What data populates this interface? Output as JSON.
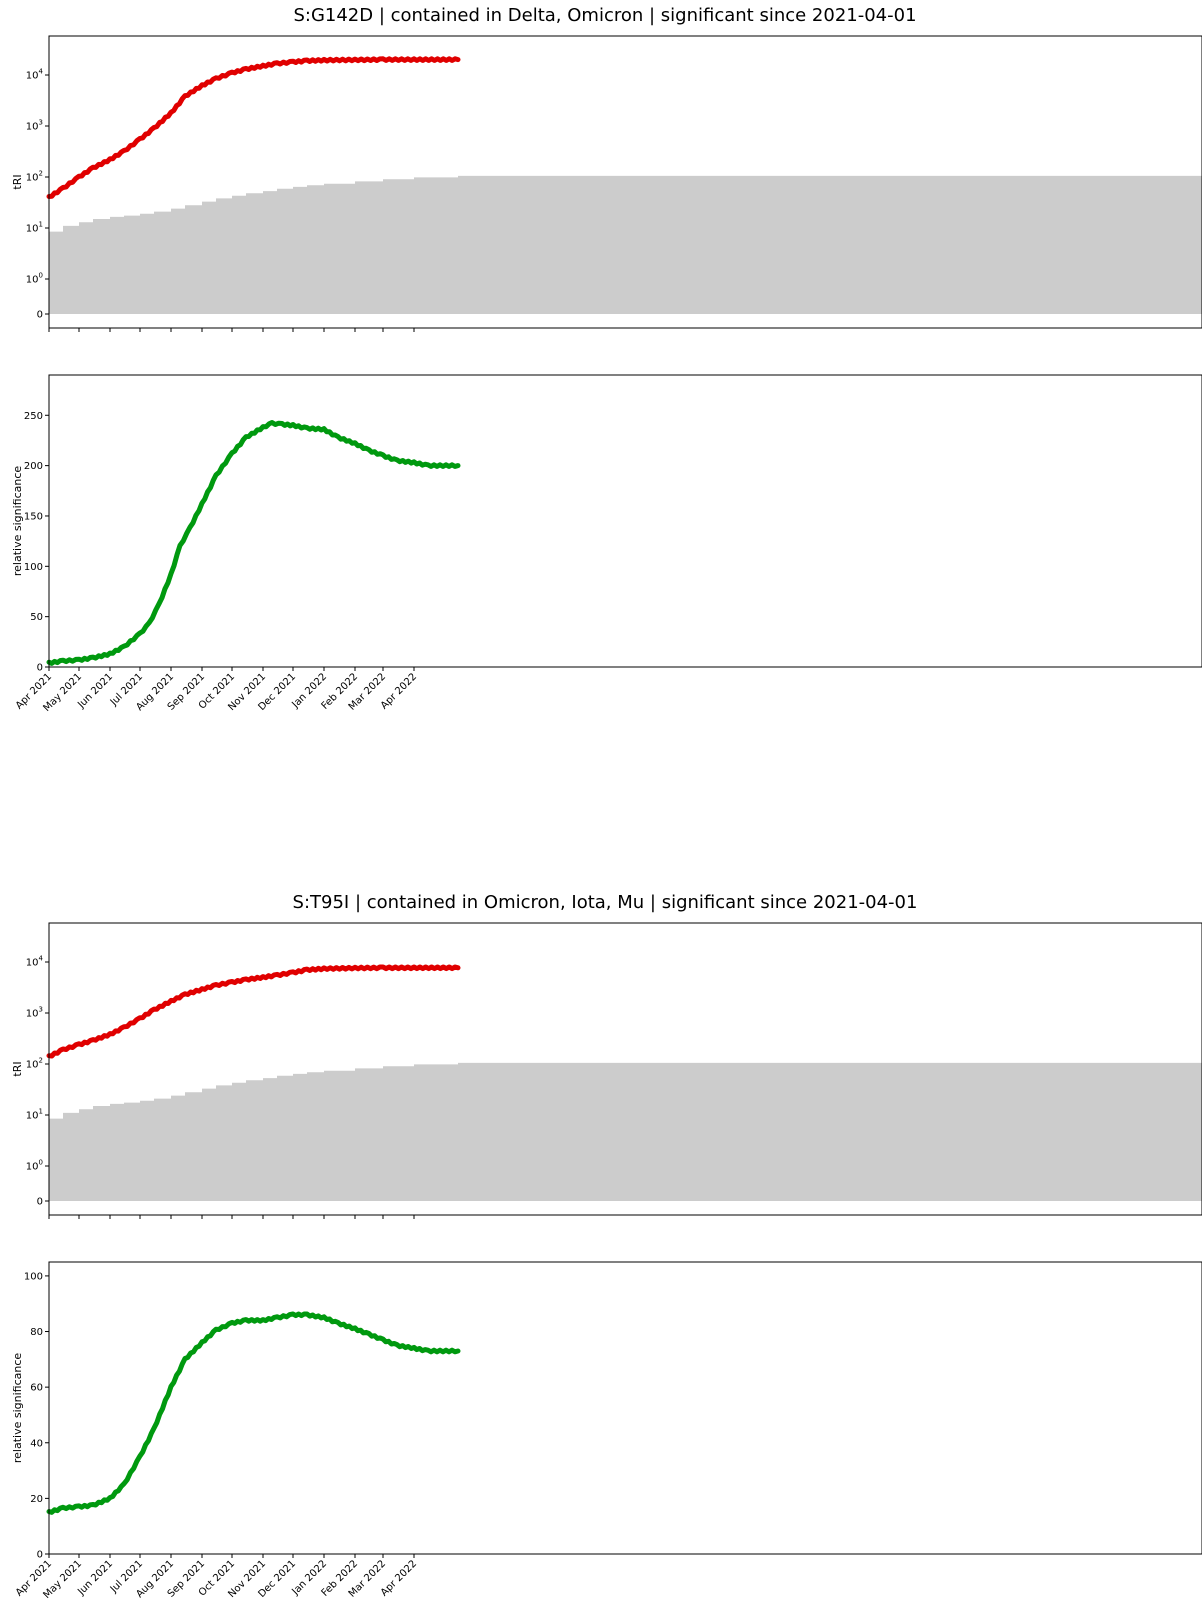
{
  "colors": {
    "tri_line": "#e00000",
    "background_band": "#cccccc",
    "significance_line": "#00990f",
    "axes": "#000000"
  },
  "x_tick_labels": [
    "Apr 2021",
    "May 2021",
    "Jun 2021",
    "Jul 2021",
    "Aug 2021",
    "Sep 2021",
    "Oct 2021",
    "Nov 2021",
    "Dec 2021",
    "Jan 2022",
    "Feb 2022",
    "Mar 2022",
    "Apr 2022"
  ],
  "chart_data": [
    {
      "title": "S:G142D | contained in Delta, Omicron | significant since 2021-04-01",
      "tri": {
        "type": "line",
        "ylabel": "tRI",
        "yscale": "symlog",
        "yticks": [
          {
            "value": 0,
            "base": "0",
            "exp": ""
          },
          {
            "value": 1,
            "base": "10",
            "exp": "0"
          },
          {
            "value": 10,
            "base": "10",
            "exp": "1"
          },
          {
            "value": 100,
            "base": "10",
            "exp": "2"
          },
          {
            "value": 1000,
            "base": "10",
            "exp": "3"
          },
          {
            "value": 10000,
            "base": "10",
            "exp": "4"
          }
        ],
        "x": [
          "2021-04-01",
          "2021-04-15",
          "2021-05-01",
          "2021-05-15",
          "2021-06-01",
          "2021-06-15",
          "2021-07-01",
          "2021-07-15",
          "2021-08-01",
          "2021-08-15",
          "2021-09-01",
          "2021-09-15",
          "2021-10-01",
          "2021-10-15",
          "2021-11-01",
          "2021-11-15",
          "2021-12-01",
          "2021-12-15",
          "2022-01-01",
          "2022-02-01",
          "2022-03-01",
          "2022-04-01",
          "2022-05-15"
        ],
        "tri_values": [
          40,
          60,
          100,
          150,
          220,
          320,
          550,
          900,
          1800,
          3800,
          6200,
          8500,
          11000,
          13000,
          15000,
          16800,
          18000,
          19000,
          19500,
          19800,
          20000,
          20000,
          20000
        ],
        "background_values": [
          8.5,
          11,
          13,
          15,
          16.5,
          17.5,
          19,
          21,
          24,
          28,
          33,
          38,
          43,
          48,
          53,
          59,
          64,
          69,
          74,
          82,
          90,
          98,
          105
        ]
      },
      "significance": {
        "type": "line",
        "ylabel": "relative significance",
        "ylim": [
          0,
          290
        ],
        "yticks": [
          0,
          50,
          100,
          150,
          200,
          250
        ],
        "x": [
          "2021-04-01",
          "2021-04-15",
          "2021-05-01",
          "2021-05-15",
          "2021-06-01",
          "2021-06-15",
          "2021-07-01",
          "2021-07-10",
          "2021-07-20",
          "2021-08-01",
          "2021-08-10",
          "2021-08-20",
          "2021-09-01",
          "2021-09-15",
          "2021-10-01",
          "2021-10-15",
          "2021-11-01",
          "2021-11-10",
          "2021-11-20",
          "2021-12-01",
          "2021-12-15",
          "2022-01-01",
          "2022-01-15",
          "2022-02-01",
          "2022-02-15",
          "2022-03-01",
          "2022-03-15",
          "2022-04-01",
          "2022-04-15",
          "2022-05-15"
        ],
        "values": [
          4,
          6,
          7,
          9,
          13,
          20,
          33,
          43,
          62,
          92,
          120,
          138,
          162,
          190,
          212,
          228,
          238,
          242,
          241,
          240,
          237,
          236,
          228,
          222,
          215,
          210,
          205,
          203,
          200,
          200
        ]
      }
    },
    {
      "title": "S:T95I | contained in Omicron, Iota, Mu | significant since 2021-04-01",
      "tri": {
        "type": "line",
        "ylabel": "tRI",
        "yscale": "symlog",
        "yticks": [
          {
            "value": 0,
            "base": "0",
            "exp": ""
          },
          {
            "value": 1,
            "base": "10",
            "exp": "0"
          },
          {
            "value": 10,
            "base": "10",
            "exp": "1"
          },
          {
            "value": 100,
            "base": "10",
            "exp": "2"
          },
          {
            "value": 1000,
            "base": "10",
            "exp": "3"
          },
          {
            "value": 10000,
            "base": "10",
            "exp": "4"
          }
        ],
        "x": [
          "2021-04-01",
          "2021-04-15",
          "2021-05-01",
          "2021-05-15",
          "2021-06-01",
          "2021-06-15",
          "2021-07-01",
          "2021-07-15",
          "2021-08-01",
          "2021-08-15",
          "2021-09-01",
          "2021-09-15",
          "2021-10-01",
          "2021-10-15",
          "2021-11-01",
          "2021-11-15",
          "2021-12-01",
          "2021-12-15",
          "2022-01-01",
          "2022-02-01",
          "2022-03-01",
          "2022-04-01",
          "2022-05-15"
        ],
        "tri_values": [
          140,
          190,
          240,
          290,
          380,
          520,
          780,
          1150,
          1700,
          2300,
          2900,
          3500,
          4000,
          4500,
          5000,
          5500,
          6200,
          7000,
          7400,
          7600,
          7700,
          7700,
          7700
        ],
        "background_values": [
          8.5,
          11,
          13,
          15,
          16.5,
          17.5,
          19,
          21,
          24,
          28,
          33,
          38,
          43,
          48,
          53,
          59,
          64,
          69,
          74,
          82,
          90,
          98,
          105
        ]
      },
      "significance": {
        "type": "line",
        "ylabel": "relative significance",
        "ylim": [
          0,
          105
        ],
        "yticks": [
          0,
          20,
          40,
          60,
          80,
          100
        ],
        "x": [
          "2021-04-01",
          "2021-04-15",
          "2021-05-01",
          "2021-05-15",
          "2021-06-01",
          "2021-06-15",
          "2021-07-01",
          "2021-07-15",
          "2021-08-01",
          "2021-08-15",
          "2021-09-01",
          "2021-09-15",
          "2021-10-01",
          "2021-10-15",
          "2021-11-01",
          "2021-11-15",
          "2021-12-01",
          "2021-12-15",
          "2022-01-01",
          "2022-01-15",
          "2022-02-01",
          "2022-02-15",
          "2022-03-01",
          "2022-03-15",
          "2022-04-01",
          "2022-04-15",
          "2022-05-15"
        ],
        "values": [
          15,
          16.5,
          17,
          17.5,
          20,
          25,
          35,
          45,
          60,
          70,
          76,
          80.5,
          83,
          84,
          84,
          85,
          86,
          86,
          85,
          83,
          81,
          79,
          77,
          75,
          74,
          73,
          73
        ]
      }
    }
  ]
}
